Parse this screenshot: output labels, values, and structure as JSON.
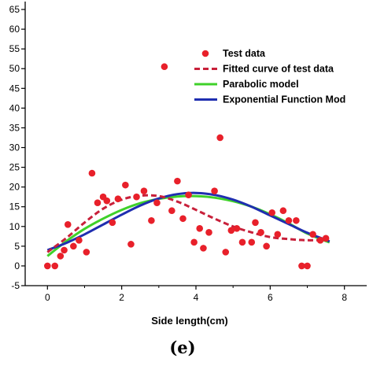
{
  "chart_data": {
    "type": "scatter",
    "title": "",
    "xlabel": "Side length(cm)",
    "ylabel": "",
    "panel_label": "(e)",
    "xlim": [
      -0.6,
      8.6
    ],
    "ylim": [
      -5,
      67
    ],
    "x_ticks": [
      0,
      2,
      4,
      6,
      8
    ],
    "y_ticks": [
      -5,
      0,
      5,
      10,
      15,
      20,
      25,
      30,
      35,
      40,
      45,
      50,
      55,
      60,
      65
    ],
    "x_tick_labels": [
      "0",
      "2",
      "4",
      "6",
      "8"
    ],
    "y_tick_labels": [
      "-5",
      "0",
      "5",
      "10",
      "15",
      "20",
      "25",
      "30",
      "35",
      "40",
      "45",
      "50",
      "55",
      "60",
      "65"
    ],
    "grid": false,
    "legend_position": "top-right",
    "series": [
      {
        "name": "Test data",
        "kind": "scatter",
        "color": "#e8202a",
        "x": [
          0.0,
          0.2,
          0.35,
          0.45,
          0.55,
          0.7,
          0.85,
          1.05,
          1.2,
          1.35,
          1.5,
          1.6,
          1.75,
          1.9,
          2.1,
          2.25,
          2.4,
          2.6,
          2.8,
          2.95,
          3.15,
          3.35,
          3.5,
          3.65,
          3.8,
          3.95,
          4.1,
          4.2,
          4.35,
          4.5,
          4.65,
          4.8,
          4.95,
          5.1,
          5.25,
          5.5,
          5.6,
          5.75,
          5.9,
          6.05,
          6.2,
          6.35,
          6.5,
          6.7,
          6.85,
          7.0,
          7.15,
          7.35,
          7.5
        ],
        "y": [
          0.0,
          0.0,
          2.5,
          4.0,
          10.5,
          5.0,
          6.5,
          3.5,
          23.5,
          16.0,
          17.5,
          16.5,
          11.0,
          17.0,
          20.5,
          5.5,
          17.5,
          19.0,
          11.5,
          16.0,
          50.5,
          14.0,
          21.5,
          12.0,
          18.0,
          6.0,
          9.5,
          4.5,
          8.5,
          19.0,
          32.5,
          3.5,
          9.0,
          9.5,
          6.0,
          6.0,
          11.0,
          8.5,
          5.0,
          13.5,
          8.0,
          14.0,
          11.5,
          11.5,
          0.0,
          0.0,
          8.0,
          6.5,
          7.0
        ]
      },
      {
        "name": "Fitted curve of test data",
        "kind": "line",
        "style": "dashed",
        "color": "#c8203a",
        "x": [
          0.0,
          0.5,
          1.0,
          1.5,
          2.0,
          2.5,
          3.0,
          3.5,
          4.0,
          4.5,
          5.0,
          5.5,
          6.0,
          6.5,
          7.0,
          7.5
        ],
        "y": [
          3.5,
          7.0,
          11.0,
          14.5,
          16.8,
          17.8,
          17.7,
          16.3,
          14.2,
          12.0,
          10.0,
          8.5,
          7.3,
          6.8,
          6.5,
          6.6
        ]
      },
      {
        "name": "Parabolic model",
        "kind": "line",
        "style": "solid",
        "color": "#3fd12a",
        "x": [
          0.0,
          0.5,
          1.0,
          1.5,
          2.0,
          2.5,
          3.0,
          3.5,
          4.0,
          4.5,
          5.0,
          5.5,
          6.0,
          6.5,
          7.0,
          7.5,
          7.6
        ],
        "y": [
          2.5,
          6.2,
          9.4,
          12.0,
          14.2,
          15.9,
          17.0,
          17.6,
          17.7,
          17.3,
          16.4,
          15.0,
          13.1,
          10.8,
          8.2,
          6.3,
          6.0
        ]
      },
      {
        "name": "Exponential Function Mod",
        "kind": "line",
        "style": "solid",
        "color": "#1f2eb0",
        "x": [
          0.0,
          0.5,
          1.0,
          1.5,
          2.0,
          2.5,
          3.0,
          3.5,
          4.0,
          4.5,
          5.0,
          5.5,
          6.0,
          6.5,
          7.0,
          7.5,
          7.6
        ],
        "y": [
          4.0,
          5.8,
          8.0,
          10.5,
          13.0,
          15.3,
          17.1,
          18.2,
          18.5,
          18.0,
          16.8,
          15.0,
          12.8,
          10.6,
          8.4,
          6.6,
          6.2
        ]
      }
    ]
  }
}
